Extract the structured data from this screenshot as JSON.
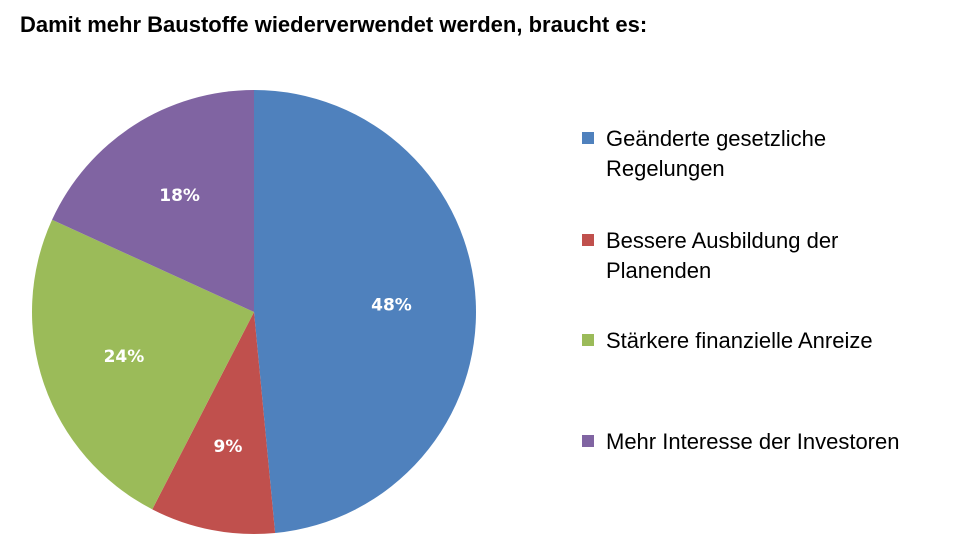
{
  "chart_data": {
    "type": "pie",
    "title": "Damit mehr Baustoffe wiederverwendet werden, braucht es:",
    "categories": [
      "Geänderte gesetzliche Regelungen",
      "Bessere Ausbildung der Planenden",
      "Stärkere finanzielle Anreize",
      "Mehr Interesse der Investoren"
    ],
    "values": [
      48,
      9,
      24,
      18
    ],
    "labels": [
      "48%",
      "9%",
      "24%",
      "18%"
    ],
    "colors": [
      "#4f81bd",
      "#c0504d",
      "#9bbb59",
      "#8064a2"
    ],
    "legend_position": "right"
  },
  "legend": {
    "items": [
      {
        "label": "Geänderte gesetzliche Regelungen",
        "color": "#4f81bd"
      },
      {
        "label": "Bessere Ausbildung der Planenden",
        "color": "#c0504d"
      },
      {
        "label": "Stärkere finanzielle Anreize",
        "color": "#9bbb59"
      },
      {
        "label": "Mehr Interesse der Investoren",
        "color": "#8064a2"
      }
    ]
  }
}
